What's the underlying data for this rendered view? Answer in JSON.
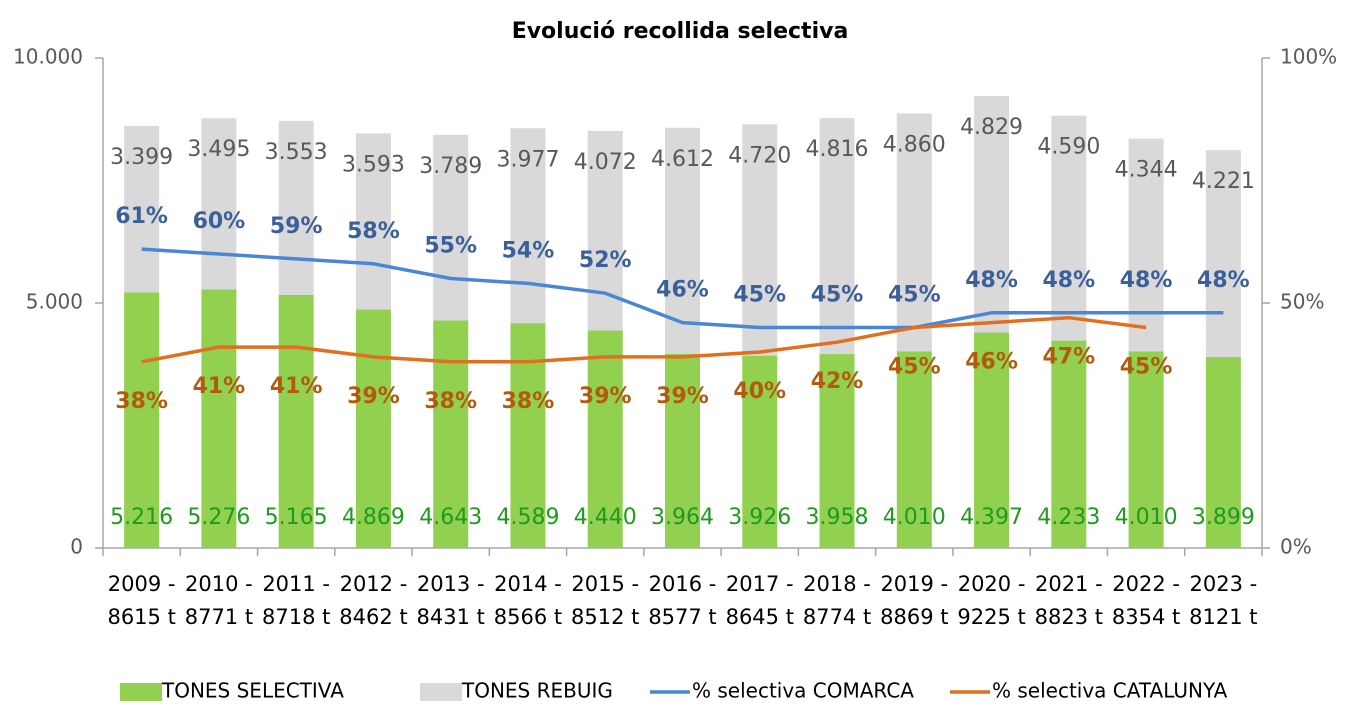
{
  "chart_data": {
    "type": "bar",
    "title": "Evolució recollida selectiva",
    "categories": [
      "2009 - 8615 t",
      "2010 - 8771 t",
      "2011 - 8718 t",
      "2012 - 8462 t",
      "2013 - 8431 t",
      "2014 - 8566 t",
      "2015 - 8512 t",
      "2016 - 8577 t",
      "2017 - 8645 t",
      "2018 - 8774 t",
      "2019 - 8869 t",
      "2020 - 9225 t",
      "2021 - 8823 t",
      "2022 - 8354 t",
      "2023 - 8121 t"
    ],
    "series": [
      {
        "name": "TONES SELECTIVA",
        "type": "bar",
        "color": "#92d050",
        "label_color": "#1e9a1e",
        "values": [
          5216,
          5276,
          5165,
          4869,
          4643,
          4589,
          4440,
          3964,
          3926,
          3958,
          4010,
          4397,
          4233,
          4010,
          3899
        ],
        "value_labels": [
          "5.216",
          "5.276",
          "5.165",
          "4.869",
          "4.643",
          "4.589",
          "4.440",
          "3.964",
          "3.926",
          "3.958",
          "4.010",
          "4.397",
          "4.233",
          "4.010",
          "3.899"
        ]
      },
      {
        "name": "TONES REBUIG",
        "type": "bar",
        "color": "#d9d9d9",
        "label_color": "#595959",
        "values": [
          3399,
          3495,
          3553,
          3593,
          3789,
          3977,
          4072,
          4612,
          4720,
          4816,
          4860,
          4829,
          4590,
          4344,
          4221
        ],
        "value_labels": [
          "3.399",
          "3.495",
          "3.553",
          "3.593",
          "3.789",
          "3.977",
          "4.072",
          "4.612",
          "4.720",
          "4.816",
          "4.860",
          "4.829",
          "4.590",
          "4.344",
          "4.221"
        ]
      },
      {
        "name": "% selectiva COMARCA",
        "type": "line",
        "axis": "y2",
        "color": "#4a86d4",
        "label_color": "#3a5f9a",
        "values": [
          61,
          60,
          59,
          58,
          55,
          54,
          52,
          46,
          45,
          45,
          45,
          48,
          48,
          48,
          48
        ],
        "value_labels": [
          "61%",
          "60%",
          "59%",
          "58%",
          "55%",
          "54%",
          "52%",
          "46%",
          "45%",
          "45%",
          "45%",
          "48%",
          "48%",
          "48%",
          "48%"
        ]
      },
      {
        "name": "% selectiva CATALUNYA",
        "type": "line",
        "axis": "y2",
        "color": "#e0701e",
        "label_color": "#b35a0c",
        "values": [
          38,
          41,
          41,
          39,
          38,
          38,
          39,
          39,
          40,
          42,
          45,
          46,
          47,
          45,
          null
        ],
        "value_labels": [
          "38%",
          "41%",
          "41%",
          "39%",
          "38%",
          "38%",
          "39%",
          "39%",
          "40%",
          "42%",
          "45%",
          "46%",
          "47%",
          "45%",
          null
        ]
      }
    ],
    "ylim": [
      0,
      10000
    ],
    "yticks": [
      0,
      {
        "value": 5000,
        "label": "5.000"
      },
      {
        "value": 10000,
        "label": "10.000"
      }
    ],
    "y2lim": [
      0,
      100
    ],
    "y2ticks": [
      {
        "value": 0,
        "label": "0%"
      },
      {
        "value": 50,
        "label": "50%"
      },
      {
        "value": 100,
        "label": "100%"
      }
    ],
    "grid": false,
    "legend": "bottom"
  }
}
